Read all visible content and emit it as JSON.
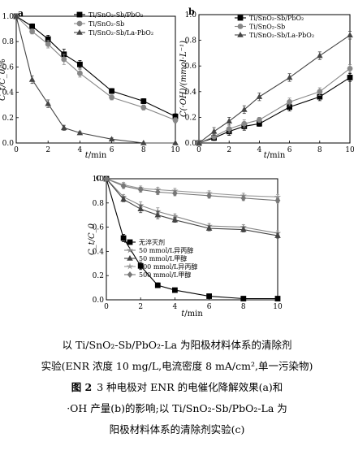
{
  "chart_data": [
    {
      "panel": "a",
      "type": "line",
      "ylabel": "C_t/C_0/%",
      "xlabel": "t/min",
      "xlim": [
        0,
        10
      ],
      "ylim": [
        0,
        1.0
      ],
      "xticks": [
        0,
        2,
        4,
        6,
        8,
        10
      ],
      "yticks": [
        0.0,
        0.2,
        0.4,
        0.6,
        0.8,
        1.0
      ],
      "legend": "top-right",
      "series": [
        {
          "name": "Ti/SnO₂-Sb/PbO₂",
          "marker": "square",
          "x": [
            0,
            1,
            2,
            3,
            4,
            6,
            8,
            10
          ],
          "y": [
            1.0,
            0.92,
            0.82,
            0.7,
            0.62,
            0.41,
            0.33,
            0.21
          ],
          "err": [
            0.01,
            0.02,
            0.03,
            0.04,
            0.03,
            0.02,
            0.02,
            0.02
          ]
        },
        {
          "name": "Ti/SnO₂-Sb",
          "marker": "circle",
          "x": [
            0,
            1,
            2,
            3,
            4,
            6,
            8,
            10
          ],
          "y": [
            1.0,
            0.88,
            0.78,
            0.66,
            0.55,
            0.36,
            0.28,
            0.18
          ],
          "err": [
            0.01,
            0.02,
            0.03,
            0.04,
            0.03,
            0.02,
            0.02,
            0.02
          ]
        },
        {
          "name": "Ti/SnO₂-Sb/La-PbO₂",
          "marker": "triangle",
          "x": [
            0,
            1,
            2,
            3,
            4,
            6,
            8,
            10
          ],
          "y": [
            1.0,
            0.5,
            0.31,
            0.12,
            0.08,
            0.03,
            0.0,
            0.0
          ],
          "err": [
            0.01,
            0.03,
            0.03,
            0.02,
            0.01,
            0.01,
            0.0,
            0.0
          ]
        }
      ]
    },
    {
      "panel": "b",
      "type": "line",
      "ylabel": "C(·OH)/(mmol·L⁻¹)",
      "xlabel": "t/min",
      "xlim": [
        0,
        10
      ],
      "ylim": [
        0,
        1.0
      ],
      "xticks": [
        0,
        2,
        4,
        6,
        8,
        10
      ],
      "yticks": [
        0.0,
        0.2,
        0.4,
        0.6,
        0.8,
        1.0
      ],
      "legend": "top-left",
      "series": [
        {
          "name": "Ti/SnO₂-Sb/PbO₂",
          "marker": "square",
          "x": [
            0,
            1,
            2,
            3,
            4,
            6,
            8,
            10
          ],
          "y": [
            0,
            0.04,
            0.09,
            0.13,
            0.15,
            0.28,
            0.36,
            0.51
          ],
          "err": [
            0,
            0.02,
            0.03,
            0.03,
            0.02,
            0.03,
            0.03,
            0.03
          ]
        },
        {
          "name": "Ti/SnO₂-Sb",
          "marker": "circle",
          "x": [
            0,
            1,
            2,
            3,
            4,
            6,
            8,
            10
          ],
          "y": [
            0,
            0.05,
            0.11,
            0.15,
            0.18,
            0.32,
            0.4,
            0.58
          ],
          "err": [
            0,
            0.02,
            0.03,
            0.03,
            0.02,
            0.03,
            0.03,
            0.03
          ]
        },
        {
          "name": "Ti/SnO₂-Sb/La-PbO₂",
          "marker": "triangle",
          "x": [
            0,
            1,
            2,
            3,
            4,
            6,
            8,
            10
          ],
          "y": [
            0,
            0.09,
            0.17,
            0.26,
            0.36,
            0.51,
            0.68,
            0.84
          ],
          "err": [
            0,
            0.03,
            0.03,
            0.03,
            0.03,
            0.03,
            0.03,
            0.03
          ]
        }
      ]
    },
    {
      "panel": "c",
      "type": "line",
      "ylabel": "C_t/C_0",
      "xlabel": "t/min",
      "xlim": [
        0,
        10
      ],
      "ylim": [
        0,
        1.0
      ],
      "xticks": [
        0,
        2,
        4,
        6,
        8,
        10
      ],
      "yticks": [
        0.0,
        0.2,
        0.4,
        0.6,
        0.8,
        1.0
      ],
      "legend": "center-left",
      "series": [
        {
          "name": "无淬灭剂",
          "marker": "square",
          "x": [
            0,
            1,
            2,
            3,
            4,
            6,
            8,
            10
          ],
          "y": [
            1.0,
            0.51,
            0.28,
            0.12,
            0.08,
            0.03,
            0.01,
            0.01
          ],
          "err": [
            0.01,
            0.03,
            0.03,
            0.02,
            0.01,
            0.01,
            0.01,
            0.0
          ]
        },
        {
          "name": "50 mmol/L异丙醇",
          "marker": "star",
          "x": [
            0,
            1,
            2,
            3,
            4,
            6,
            8,
            10
          ],
          "y": [
            1.0,
            0.85,
            0.78,
            0.73,
            0.69,
            0.61,
            0.6,
            0.55
          ],
          "err": [
            0.01,
            0.02,
            0.03,
            0.03,
            0.02,
            0.02,
            0.02,
            0.02
          ]
        },
        {
          "name": "50 mmol/L甲醇",
          "marker": "triangle",
          "x": [
            0,
            1,
            2,
            3,
            4,
            6,
            8,
            10
          ],
          "y": [
            1.0,
            0.83,
            0.75,
            0.7,
            0.66,
            0.59,
            0.58,
            0.53
          ],
          "err": [
            0.01,
            0.02,
            0.03,
            0.03,
            0.02,
            0.02,
            0.02,
            0.02
          ]
        },
        {
          "name": "500 mmol/L异丙醇",
          "marker": "star",
          "x": [
            0,
            1,
            2,
            3,
            4,
            6,
            8,
            10
          ],
          "y": [
            1.0,
            0.95,
            0.92,
            0.91,
            0.9,
            0.88,
            0.86,
            0.85
          ],
          "err": [
            0.01,
            0.02,
            0.02,
            0.02,
            0.02,
            0.02,
            0.02,
            0.02
          ]
        },
        {
          "name": "500 mmol/L甲醇",
          "marker": "diamond",
          "x": [
            0,
            1,
            2,
            3,
            4,
            6,
            8,
            10
          ],
          "y": [
            1.0,
            0.94,
            0.91,
            0.89,
            0.88,
            0.86,
            0.84,
            0.82
          ],
          "err": [
            0.01,
            0.02,
            0.02,
            0.02,
            0.02,
            0.02,
            0.02,
            0.02
          ]
        }
      ]
    }
  ],
  "caption": {
    "line1": "以 Ti/SnO₂-Sb/PbO₂-La 为阳极材料体系的清除剂",
    "line2": "实验(ENR 浓度 10 mg/L,电流密度 8 mA/cm²,单一污染物)",
    "fig_label": "图 2",
    "line3": "3 种电极对 ENR 的电催化降解效果(a)和",
    "line4": "·OH 产量(b)的影响;以 Ti/SnO₂-Sb/PbO₂-La 为",
    "line5": "阳极材料体系的清除剂实验(c)"
  }
}
